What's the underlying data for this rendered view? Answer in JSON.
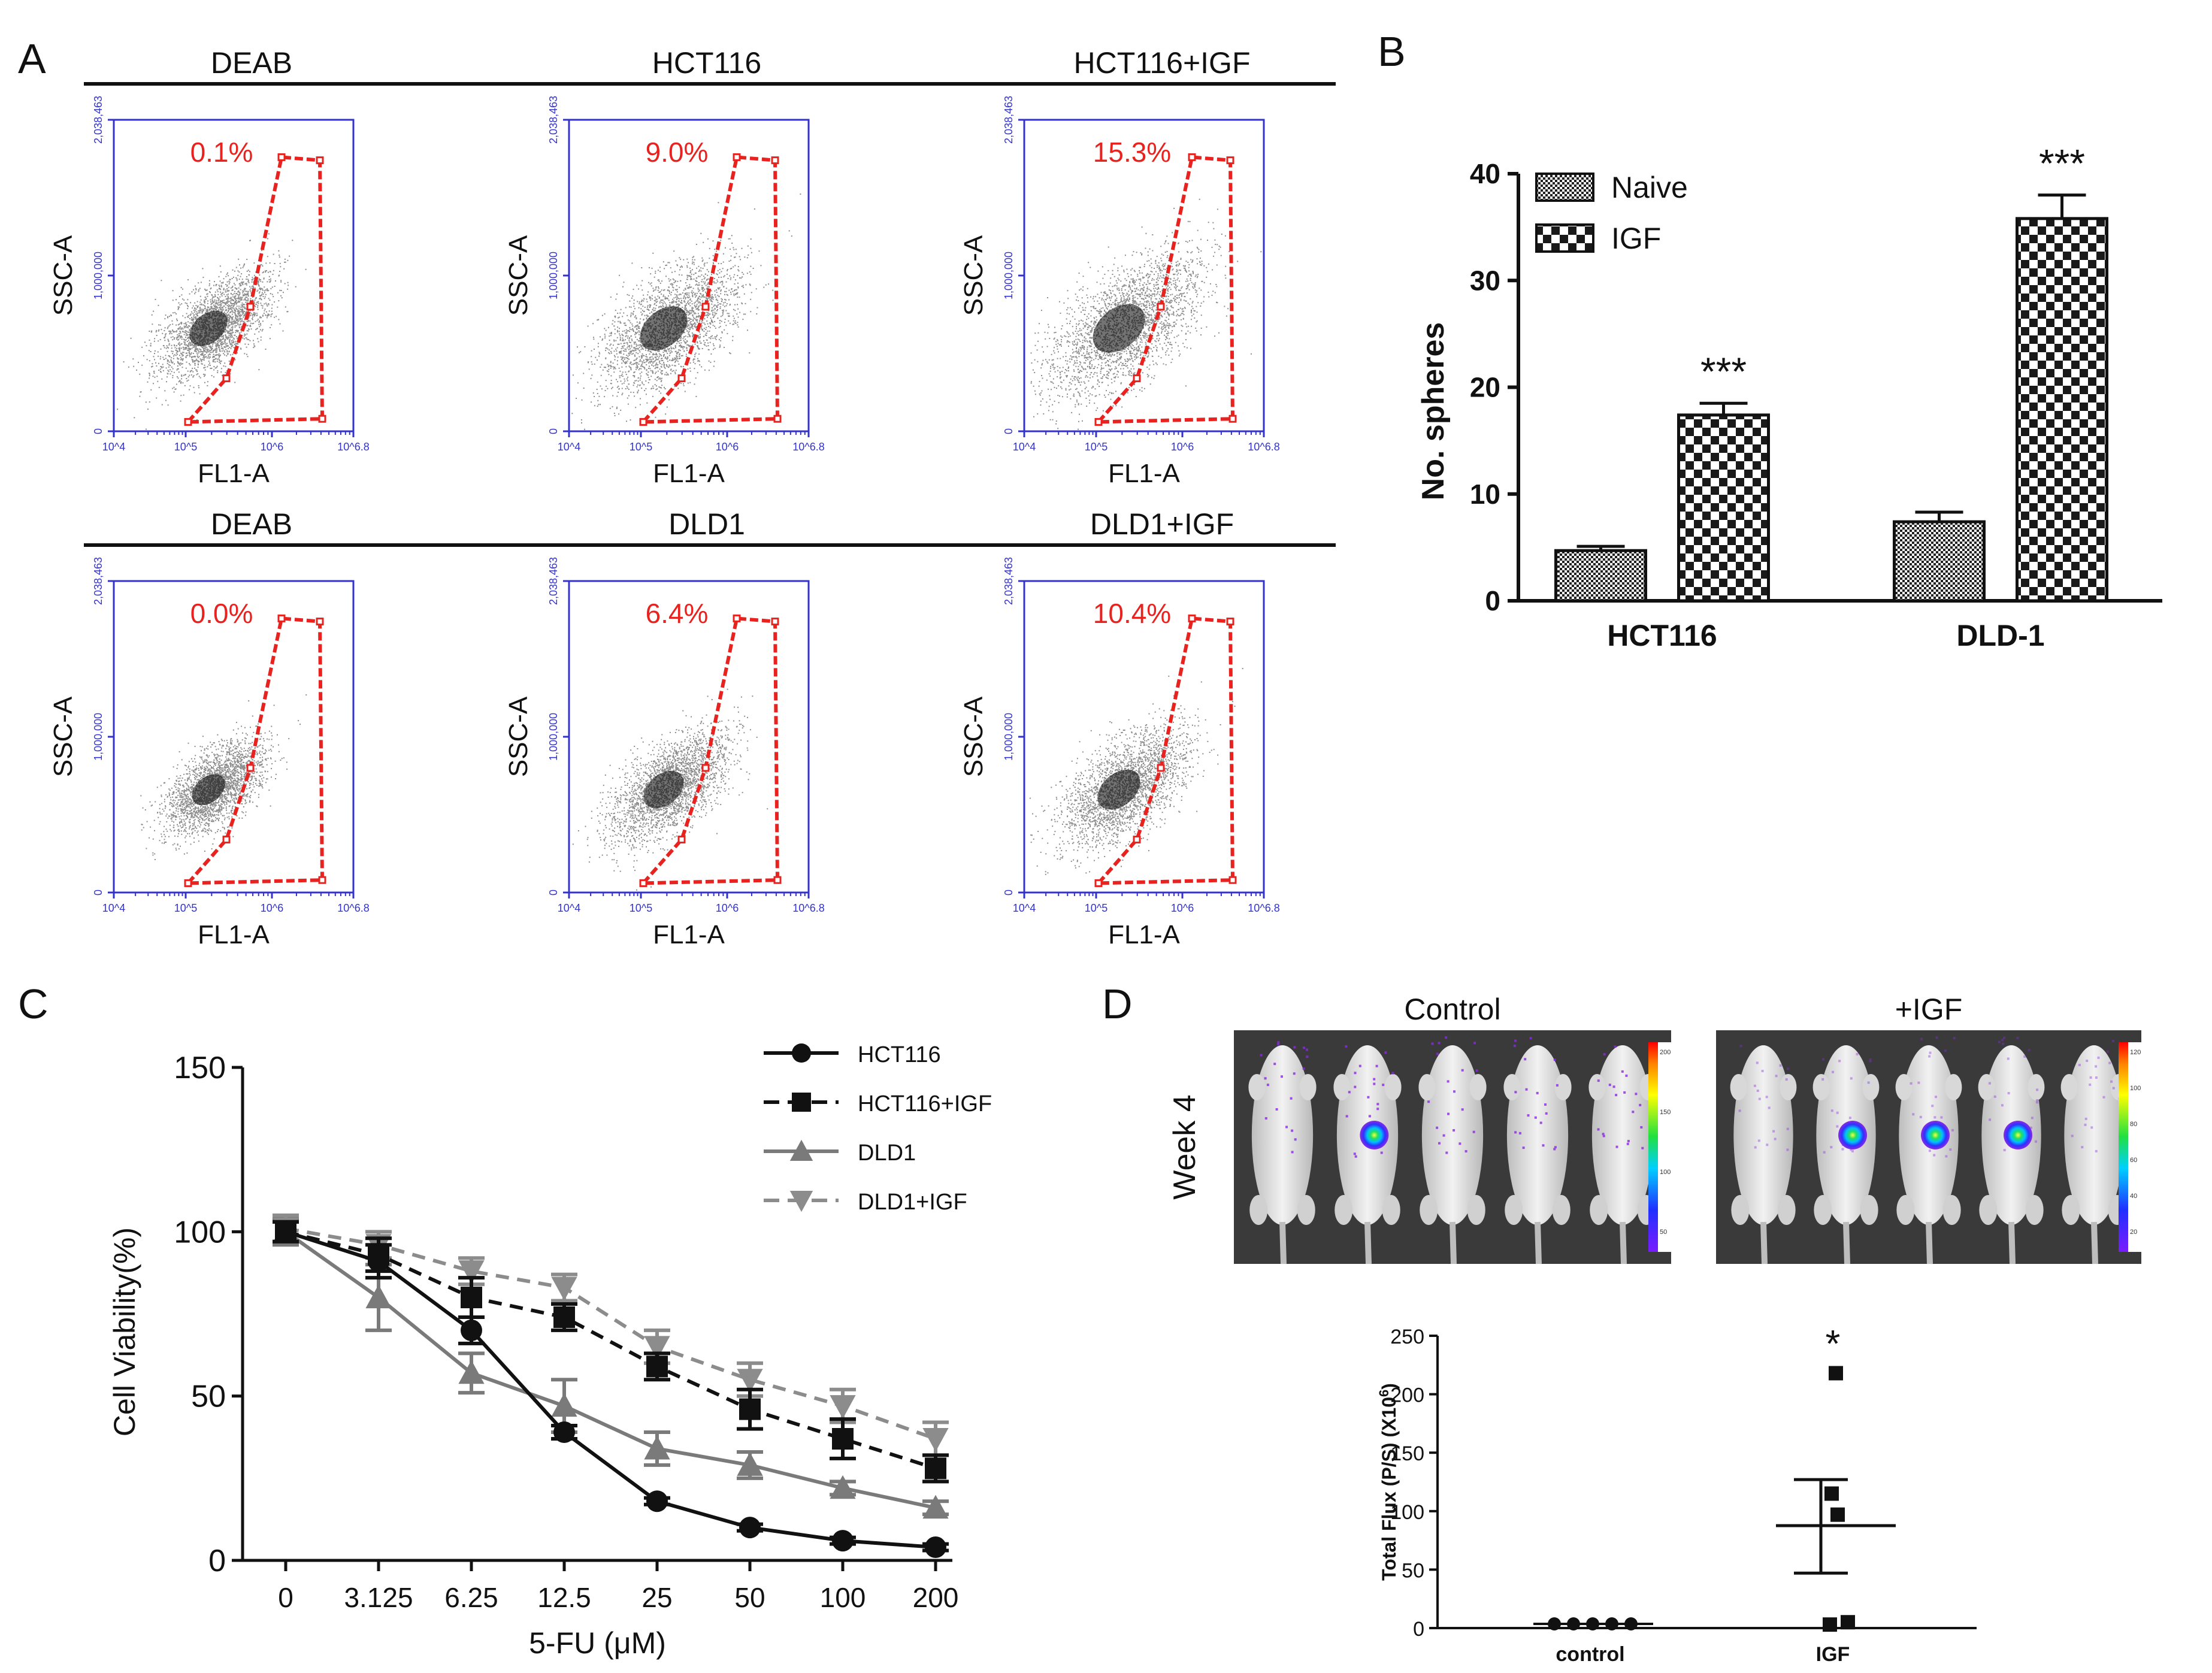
{
  "panels": {
    "A": {
      "label": "A"
    },
    "B": {
      "label": "B"
    },
    "C": {
      "label": "C"
    },
    "D": {
      "label": "D"
    }
  },
  "colors": {
    "gate": "#e8231f",
    "flow_axis": "#3333cc",
    "black": "#111111",
    "gray": "#7a7a7a",
    "dashed_gray": "#8c8c8c"
  },
  "chart_data": [
    {
      "panel": "A",
      "type": "scatter",
      "x_label": "FL1-A",
      "y_label": "SSC-A",
      "y_ticks": [
        "0",
        "1,000,000",
        "2,038,463"
      ],
      "x_ticks": [
        "10^4",
        "10^5",
        "10^6",
        "10^6.8"
      ],
      "rows": [
        {
          "plots": [
            {
              "title": "DEAB",
              "percent": "0.1%",
              "spread": 0.8
            },
            {
              "title": "HCT116",
              "percent": "9.0%",
              "spread": 1.0
            },
            {
              "title": "HCT116+IGF",
              "percent": "15.3%",
              "spread": 1.1
            }
          ]
        },
        {
          "plots": [
            {
              "title": "DEAB",
              "percent": "0.0%",
              "spread": 0.7
            },
            {
              "title": "DLD1",
              "percent": "6.4%",
              "spread": 0.85
            },
            {
              "title": "DLD1+IGF",
              "percent": "10.4%",
              "spread": 0.9
            }
          ]
        }
      ]
    },
    {
      "panel": "B",
      "type": "bar",
      "ylabel": "No. spheres",
      "ylim": [
        0,
        40
      ],
      "yticks": [
        0,
        10,
        20,
        30,
        40
      ],
      "categories": [
        "HCT116",
        "DLD-1"
      ],
      "series": [
        {
          "name": "Naive",
          "values": [
            4.7,
            7.4
          ],
          "errors": [
            0.4,
            0.9
          ]
        },
        {
          "name": "IGF",
          "values": [
            17.4,
            35.8
          ],
          "errors": [
            1.1,
            2.2
          ]
        }
      ],
      "significance": [
        "***",
        "***"
      ],
      "legend": "top-left"
    },
    {
      "panel": "C",
      "type": "line",
      "xlabel": "5-FU (μM)",
      "ylabel": "Cell Viability(%)",
      "ylim": [
        0,
        150
      ],
      "yticks": [
        0,
        50,
        100,
        150
      ],
      "x": [
        "0",
        "3.125",
        "6.25",
        "12.5",
        "25",
        "50",
        "100",
        "200"
      ],
      "series": [
        {
          "name": "HCT116",
          "values": [
            100,
            91,
            70,
            39,
            18,
            10,
            6,
            4
          ],
          "errors": [
            3,
            5,
            4,
            2,
            1,
            1,
            1,
            1
          ]
        },
        {
          "name": "HCT116+IGF",
          "values": [
            100,
            93,
            80,
            74,
            59,
            46,
            37,
            28
          ],
          "errors": [
            3,
            5,
            6,
            4,
            4,
            6,
            6,
            4
          ]
        },
        {
          "name": "DLD1",
          "values": [
            100,
            80,
            57,
            47,
            34,
            29,
            22,
            16
          ],
          "errors": [
            4,
            10,
            6,
            8,
            5,
            4,
            2,
            2
          ]
        },
        {
          "name": "DLD1+IGF",
          "values": [
            101,
            96,
            88,
            83,
            65,
            55,
            47,
            37
          ],
          "errors": [
            4,
            4,
            4,
            4,
            5,
            5,
            5,
            5
          ]
        }
      ],
      "legend": "top-right"
    },
    {
      "panel": "D",
      "type": "scatter",
      "images": {
        "row_label": "Week 4",
        "groups": [
          {
            "title": "Control",
            "scale_ticks": [
              "200",
              "150",
              "100",
              "50"
            ],
            "mice_with_signal": [
              1
            ]
          },
          {
            "title": "+IGF",
            "scale_ticks": [
              "120",
              "100",
              "80",
              "60",
              "40",
              "20"
            ],
            "mice_with_signal": [
              1,
              2,
              3
            ]
          }
        ]
      },
      "ylabel": "Total Flux (P/S) (X10",
      "ylabel_sup": "6",
      "ylabel_end": ")",
      "ylim": [
        0,
        250
      ],
      "yticks": [
        0,
        50,
        100,
        150,
        200,
        250
      ],
      "categories": [
        "control",
        "IGF"
      ],
      "series": [
        {
          "name": "control",
          "values": [
            0.5,
            0.5,
            0.5,
            0.5,
            0.5
          ],
          "mean": 0.5
        },
        {
          "name": "IGF",
          "values": [
            218,
            115,
            97,
            3,
            5
          ],
          "mean": 87.6,
          "sem_upper": 127,
          "sem_lower": 47
        }
      ],
      "significance": "*"
    }
  ]
}
